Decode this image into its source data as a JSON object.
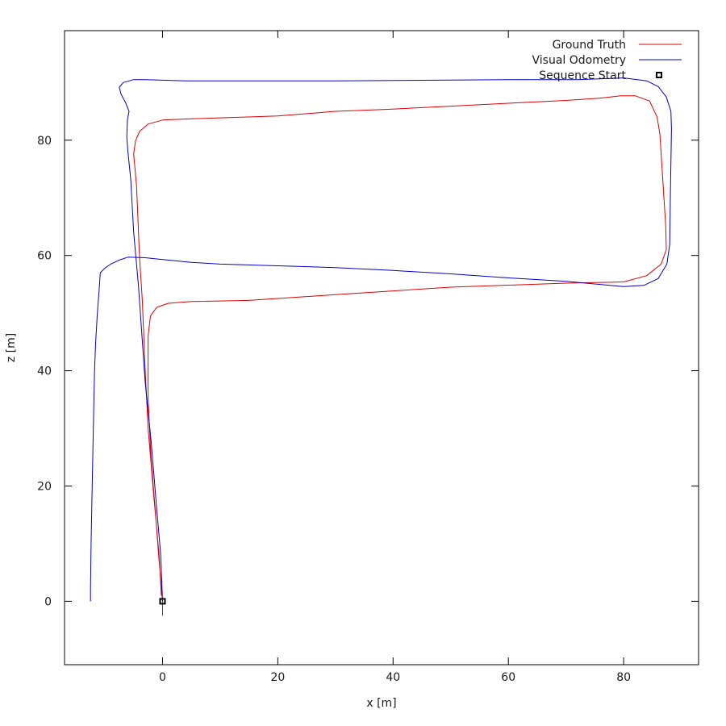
{
  "chart_data": {
    "type": "line",
    "title": "",
    "xlabel": "x [m]",
    "ylabel": "z [m]",
    "xlim": [
      -17,
      93
    ],
    "ylim": [
      -11,
      99
    ],
    "xticks": [
      0,
      20,
      40,
      60,
      80
    ],
    "yticks": [
      0,
      20,
      40,
      60,
      80
    ],
    "grid": false,
    "legend_position": "top-right",
    "series": [
      {
        "name": "Ground Truth",
        "color": "#dd0000",
        "points": [
          [
            0,
            -2.5
          ],
          [
            0,
            0
          ],
          [
            -0.6,
            7
          ],
          [
            -1.2,
            15
          ],
          [
            -2,
            25
          ],
          [
            -2.5,
            35
          ],
          [
            -2.5,
            46
          ],
          [
            -2.1,
            49.5
          ],
          [
            -1,
            51
          ],
          [
            1,
            51.7
          ],
          [
            5,
            52
          ],
          [
            15,
            52.2
          ],
          [
            30,
            53.2
          ],
          [
            50,
            54.5
          ],
          [
            70,
            55.2
          ],
          [
            80,
            55.4
          ],
          [
            84,
            56.5
          ],
          [
            86.5,
            58.5
          ],
          [
            87.4,
            61
          ],
          [
            87.3,
            65
          ],
          [
            86.8,
            73
          ],
          [
            86.3,
            81
          ],
          [
            85.8,
            84
          ],
          [
            84.5,
            86.8
          ],
          [
            82,
            87.7
          ],
          [
            79.5,
            87.7
          ],
          [
            76,
            87.3
          ],
          [
            70,
            86.9
          ],
          [
            60,
            86.4
          ],
          [
            50,
            85.9
          ],
          [
            40,
            85.4
          ],
          [
            30,
            85
          ],
          [
            20,
            84.2
          ],
          [
            5,
            83.7
          ],
          [
            0,
            83.5
          ],
          [
            -2.5,
            82.8
          ],
          [
            -4,
            81.5
          ],
          [
            -4.7,
            79.8
          ],
          [
            -5,
            77.6
          ],
          [
            -4.5,
            72
          ],
          [
            -4,
            60
          ],
          [
            -3.5,
            52
          ],
          [
            -3,
            40
          ],
          [
            -2.5,
            30
          ],
          [
            -1.5,
            18
          ],
          [
            -0.6,
            8
          ],
          [
            -0.2,
            1
          ]
        ]
      },
      {
        "name": "Visual Odometry",
        "color": "#0000cc",
        "points": [
          [
            0,
            0
          ],
          [
            -0.3,
            8
          ],
          [
            -1,
            16
          ],
          [
            -2,
            28
          ],
          [
            -3,
            38
          ],
          [
            -3.5,
            45
          ],
          [
            -4.2,
            55
          ],
          [
            -5,
            64
          ],
          [
            -5.5,
            73
          ],
          [
            -6,
            78
          ],
          [
            -6.2,
            80.5
          ],
          [
            -6.1,
            83.5
          ],
          [
            -5.8,
            85
          ],
          [
            -6.4,
            86.5
          ],
          [
            -7.2,
            88
          ],
          [
            -7.5,
            89.2
          ],
          [
            -6.8,
            90
          ],
          [
            -5,
            90.5
          ],
          [
            -3,
            90.5
          ],
          [
            4,
            90.3
          ],
          [
            15,
            90.3
          ],
          [
            30,
            90.3
          ],
          [
            45,
            90.4
          ],
          [
            60,
            90.5
          ],
          [
            72,
            90.5
          ],
          [
            80,
            90.8
          ],
          [
            84,
            90.3
          ],
          [
            86,
            89.3
          ],
          [
            87.4,
            87.5
          ],
          [
            88.2,
            85
          ],
          [
            88.3,
            82
          ],
          [
            88.1,
            70
          ],
          [
            88,
            62
          ],
          [
            87.5,
            58.5
          ],
          [
            86,
            56
          ],
          [
            83.5,
            54.8
          ],
          [
            80,
            54.6
          ],
          [
            70,
            55.5
          ],
          [
            60,
            56.1
          ],
          [
            50,
            56.8
          ],
          [
            40,
            57.4
          ],
          [
            30,
            57.9
          ],
          [
            20,
            58.2
          ],
          [
            10,
            58.5
          ],
          [
            5,
            58.8
          ],
          [
            2,
            59.1
          ],
          [
            -1,
            59.4
          ],
          [
            -3,
            59.6
          ],
          [
            -6,
            59.7
          ],
          [
            -7.5,
            59.2
          ],
          [
            -9,
            58.5
          ],
          [
            -10,
            57.8
          ],
          [
            -10.8,
            57
          ],
          [
            -11,
            54
          ],
          [
            -11.3,
            50
          ],
          [
            -11.6,
            45
          ],
          [
            -11.8,
            40
          ],
          [
            -12,
            30
          ],
          [
            -12.2,
            20
          ],
          [
            -12.4,
            10
          ],
          [
            -12.5,
            2
          ],
          [
            -12.5,
            0
          ]
        ]
      },
      {
        "name": "Sequence Start",
        "marker": "open-square",
        "color": "#000000",
        "points": [
          [
            0,
            0
          ]
        ]
      }
    ]
  }
}
